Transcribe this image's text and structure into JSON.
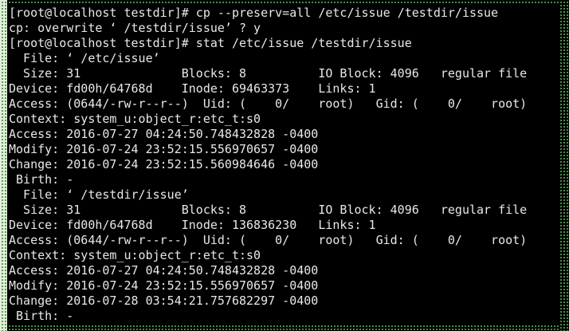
{
  "terminal": {
    "colors": {
      "screen_bg": "#000000",
      "text": "#e8e8e8",
      "border_dot": "#4fa74f",
      "border_left_bg": "#e6eedd",
      "border_left_dot": "#3f943f"
    },
    "prompt": "[root@localhost testdir]#",
    "commands": [
      "cp --preserv=all /etc/issue /testdir/issue",
      "stat /etc/issue /testdir/issue"
    ],
    "lines": [
      "[root@localhost testdir]# cp --preserv=all /etc/issue /testdir/issue",
      "cp: overwrite ‘ /testdir/issue’ ? y",
      "[root@localhost testdir]# stat /etc/issue /testdir/issue",
      "  File: ‘ /etc/issue’",
      "  Size: 31              Blocks: 8          IO Block: 4096   regular file",
      "Device: fd00h/64768d    Inode: 69463373    Links: 1",
      "Access: (0644/-rw-r--r--)  Uid: (    0/    root)   Gid: (    0/    root)",
      "Context: system_u:object_r:etc_t:s0",
      "Access: 2016-07-27 04:24:50.748432828 -0400",
      "Modify: 2016-07-24 23:52:15.556970657 -0400",
      "Change: 2016-07-24 23:52:15.560984646 -0400",
      " Birth: -",
      "  File: ‘ /testdir/issue’",
      "  Size: 31              Blocks: 8          IO Block: 4096   regular file",
      "Device: fd00h/64768d    Inode: 136836230   Links: 1",
      "Access: (0644/-rw-r--r--)  Uid: (    0/    root)   Gid: (    0/    root)",
      "Context: system_u:object_r:etc_t:s0",
      "Access: 2016-07-27 04:24:50.748432828 -0400",
      "Modify: 2016-07-24 23:52:15.556970657 -0400",
      "Change: 2016-07-28 03:54:21.757682297 -0400",
      " Birth: -"
    ]
  }
}
